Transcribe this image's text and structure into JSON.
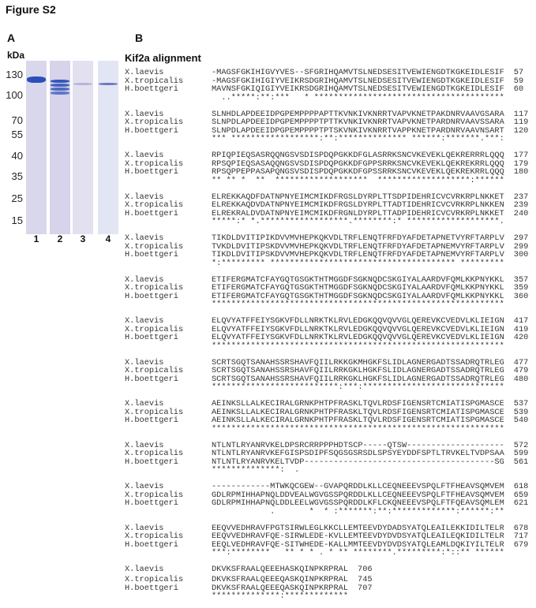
{
  "figure_title": "Figure S2",
  "panel_a": {
    "label": "A",
    "unit_label": "kDa",
    "markers": [
      "130",
      "100",
      "70",
      "55",
      "40",
      "35",
      "25",
      "15"
    ],
    "lanes": [
      "1",
      "2",
      "3",
      "4"
    ],
    "band_color": "#2a4fb8",
    "lane_color": "#d9d7ec"
  },
  "panel_b": {
    "label": "B",
    "title": "Kif2a alignment",
    "species": [
      "X.laevis",
      "X.tropicalis",
      "H.boettgeri"
    ],
    "blocks": [
      {
        "rows": [
          {
            "seq": "-MAGSFGKIHIGVYVES--SFGRIHQAMVTSLNEDSESITVEWIENGDTKGKEIDLESIF",
            "num": "57"
          },
          {
            "seq": "-MAGSFGKIHIGIYVEIKRSDGRIHQAMVTSLNEDSESITVEWIENGDTKGKEIDLESIF",
            "num": "59"
          },
          {
            "seq": "MAVNSFGKIQIGIYVEIKRSDGRIHQAMVTSLNEDSESITVEWIENGDTKGKEIDLESIF",
            "num": "60"
          }
        ],
        "consensus": "  ..*****:**:***   * ***************************************"
      },
      {
        "rows": [
          {
            "seq": "SLNHDLAPDEEIDPGPEMPPPPAPTTKVNKIVKNRRTVAPVKNETPAKDNRVAAVGSARA",
            "num": "117"
          },
          {
            "seq": "SLNPDLAPDEEIDPGPEMPPPPTPTTKVNKIVKNRRTVAPVKNETPARDNRVAAVSSARA",
            "num": "119"
          },
          {
            "seq": "SLNPDLAPDEEIDPGPEMPPPPTPTSKVNKIVKNRRTVAPPKNETPARDNRVAAVNSART",
            "num": "120"
          }
        ],
        "consensus": "*** ******************:**:************** ******:*******.***:"
      },
      {
        "rows": [
          {
            "seq": "RPIQPIEQSASRQQNGSVSDISPDQPGKKDFGLASRRKSNCVKEVEKLQEKRERRRLQQQ",
            "num": "177"
          },
          {
            "seq": "RPSQPIEQSASAQQNGSVSDISPDQPGKKDFGPPSRRKSNCVKEVEKLQEKREKRRLQQQ",
            "num": "179"
          },
          {
            "seq": "RPSQPPEPPASAPQNGSVSDISPDQPGKKDFGPSSRRKSNCVKEVEKLQEKREKRRLQQQ",
            "num": "180"
          }
        ],
        "consensus": "** ** *  **  *******************  *******************:******"
      },
      {
        "rows": [
          {
            "seq": "ELREKKAQDFDATNPNYEIMCMIKDFRGSLDYRPLTTSDPIDEHRICVCVRKRPLNKKET",
            "num": "237"
          },
          {
            "seq": "ELREKKAQDVDATNPNYEIMCMIKDFRGSLDYRPLTTADTIDEHRICVCVRKRPLNKKEN",
            "num": "239"
          },
          {
            "seq": "ELREKRALDVDATNPNYEIMCMIKDFRGNLDYRPLTTADPIDEHRICVCVRKRPLNKKET",
            "num": "240"
          }
        ],
        "consensus": "*****:* *.******************.********:* *******************."
      },
      {
        "rows": [
          {
            "seq": "TIKDLDVITIPIKDVVMVHEPKQKVDLTRFLENQTFRFDYAFDETAPNETVYRFTARPLV",
            "num": "297"
          },
          {
            "seq": "TVKDLDVITIPSKDVVMVHEPKQKVDLTRFLENQTFRFDYAFDETAPNEMVYRFTARPLV",
            "num": "299"
          },
          {
            "seq": "TIKDLDVITIPSKDVVMVHEPKQKVDLTRFLENQTFRFDYAFDETAPNEMVYRFTARPLV",
            "num": "300"
          }
        ],
        "consensus": "*:********* ************************************** *********"
      },
      {
        "rows": [
          {
            "seq": "ETIFERGMATCFAYGQTGSGKTHTMGGDFSGKNQDCSKGIYALAARDVFQMLKKPNYKKL",
            "num": "357"
          },
          {
            "seq": "ETIFERGMATCFAYGQTGSGKTHTMGGDFSGKNQDCSKGIYALAARDVFQMLKKPNYKKL",
            "num": "359"
          },
          {
            "seq": "ETIFERGMATCFAYGQTGSGKTHTMGGDFSGKNQDCSKGIYALAARDVFQMLKKPNYKKL",
            "num": "360"
          }
        ],
        "consensus": "************************************************************"
      },
      {
        "rows": [
          {
            "seq": "ELQVYATFFEIYSGKVFDLLNRKTKLRVLEDGKQQVQVVGLQEREVKCVEDVLKLIEIGN",
            "num": "417"
          },
          {
            "seq": "ELQVYATFFEIYSGKVFDLLNRKTKLRVLEDGKQQVQVVGLQEREVKCVEDVLKLIEIGN",
            "num": "419"
          },
          {
            "seq": "ELQVYATFFEIYSGKVFDLLNRKTKLRVLEDGKQQVQVVGLQEREVKCVEDVLKLIEIGN",
            "num": "420"
          }
        ],
        "consensus": "************************************************************"
      },
      {
        "rows": [
          {
            "seq": "SCRTSGQTSANAHSSRSHAVFQIILRKKGKMHGKFSLIDLAGNERGADTSSADRQTRLEG",
            "num": "477"
          },
          {
            "seq": "SCRTSGQTSANAHSSRSHAVFQIILRRKGKLHGKFSLIDLAGNERGADTSSADRQTRLEG",
            "num": "479"
          },
          {
            "seq": "SCRTSGQTSANAHSSRSHAVFQIILRRKGKLHGKFSLIDLAGNERGADTSSADRQTRLEG",
            "num": "480"
          }
        ],
        "consensus": "**************************:***:*****************************"
      },
      {
        "rows": [
          {
            "seq": "AEINKSLLALKECIRALGRNKPHTPFRASKLTQVLRDSFIGENSRTCMIATISPGMASCE",
            "num": "537"
          },
          {
            "seq": "AEINKSLLALKECIRALGRNKPHTPFRASKLTQVLRDSFIGENSRTCMIATISPGMASCE",
            "num": "539"
          },
          {
            "seq": "AEINKSLLALKECIRALGRNKPHTPFRASKLTQVLRDSFIGENSRTCMIATISPGMASCE",
            "num": "540"
          }
        ],
        "consensus": "************************************************************"
      },
      {
        "rows": [
          {
            "seq": "NTLNTLRYANRVKELDPSRCRRPPPHDTSCP-----QTSW--------------------",
            "num": "572"
          },
          {
            "seq": "NTLNTLRYANRVKEFGISPSDIPFSQGSGSRSDLSPSYEYDDFSPTLTRVKELTVDPSAA",
            "num": "599"
          },
          {
            "seq": "NTLNTLRYANRVKELTVDP---------------------------------------SG",
            "num": "561"
          }
        ],
        "consensus": "**************:  ."
      },
      {
        "rows": [
          {
            "seq": "------------MTWKQCGEW--GVAPQRDDLKLLCEQNEEEVSPQLFTFHEAVSQMVEM",
            "num": "618"
          },
          {
            "seq": "GDLRPMIHHAPNQLDDVEALWGVGSSPQRDDLKLLCEQNEEEVSPQLFTFHEAVSQMVEM",
            "num": "659"
          },
          {
            "seq": "GDLRPMIHHAPNQLDDLEELWGVGSSPQRDDLKFLCKQNEEEVSPQLFTFQEAVSQMLEM",
            "num": "621"
          }
        ],
        "consensus": "            .       *  * :*******:**:*************:******:**"
      },
      {
        "rows": [
          {
            "seq": "EEQVVEDHRAVFPGTSIRWLEGLKKCLLEMTEEVDYDADSYATQLEAILEKKIDILTELR",
            "num": "678"
          },
          {
            "seq": "EEQVVEDHRAVFQE-SIRWLEDE-KVLLEMTEEVDYDVDSYATQLEAILEQKIDILTELR",
            "num": "717"
          },
          {
            "seq": "EEQLVEDHRAVFQE-SITWHEDE-KALLMMTEEVDYDVDSYATQLEAMLDQKIYILTELR",
            "num": "679"
          }
        ],
        "consensus": "***:********   ** * * . * ** ********.*********:*::** ******"
      },
      {
        "rows": [
          {
            "seq": "DKVKSFRAALQEEEHASKQINPKRPRAL",
            "num": "706"
          },
          {
            "seq": "DKVKSFRAALQEEEQASKQINPKRPRAL",
            "num": "745"
          },
          {
            "seq": "DKVKSFRAALQEEEQASKQINPKRPRAL",
            "num": "707"
          }
        ],
        "consensus": "**************:*************"
      }
    ]
  }
}
